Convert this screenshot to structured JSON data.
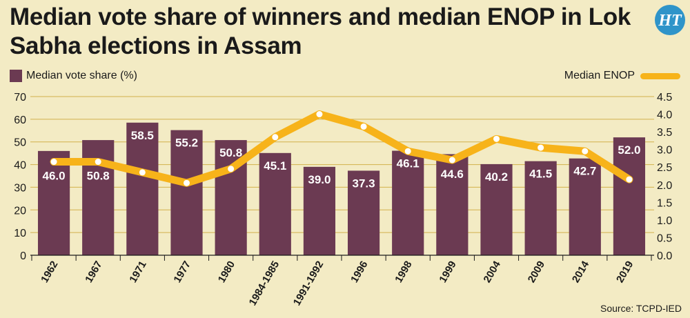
{
  "header": {
    "title": "Median vote share of winners and median ENOP in Lok Sabha elections in Assam",
    "logo_text": "HT"
  },
  "legend": {
    "left_label": "Median vote share (%)",
    "right_label": "Median ENOP"
  },
  "source": "Source: TCPD-IED",
  "colors": {
    "bar": "#6b3a52",
    "line": "#f7b31a",
    "marker": "#ffffff",
    "grid": "#d2b04a",
    "background": "#f3ebc4",
    "logo": "#2f94c9"
  },
  "chart_data": {
    "type": "bar",
    "categories": [
      "1962",
      "1967",
      "1971",
      "1977",
      "1980",
      "1984-1985",
      "1991-1992",
      "1996",
      "1998",
      "1999",
      "2004",
      "2009",
      "2014",
      "2019"
    ],
    "series": [
      {
        "name": "Median vote share (%)",
        "type": "bar",
        "axis": "left",
        "values": [
          46.0,
          50.8,
          58.5,
          55.2,
          50.8,
          45.1,
          39.0,
          37.3,
          46.1,
          44.6,
          40.2,
          41.5,
          42.7,
          52.0
        ],
        "labels": [
          "46.0",
          "50.8",
          "58.5",
          "55.2",
          "50.8",
          "45.1",
          "39.0",
          "37.3",
          "46.1",
          "44.6",
          "40.2",
          "41.5",
          "42.7",
          "52.0"
        ]
      },
      {
        "name": "Median ENOP",
        "type": "line",
        "axis": "right",
        "values": [
          2.65,
          2.65,
          2.35,
          2.05,
          2.45,
          3.35,
          4.0,
          3.65,
          2.95,
          2.7,
          3.3,
          3.05,
          2.95,
          2.15
        ]
      }
    ],
    "ylim_left": [
      0,
      70
    ],
    "ylim_right": [
      0,
      4.5
    ],
    "yticks_left": [
      "0",
      "10",
      "20",
      "30",
      "40",
      "50",
      "60",
      "70"
    ],
    "yticks_right": [
      "0.0",
      "0.5",
      "1.0",
      "1.5",
      "2.0",
      "2.5",
      "3.0",
      "3.5",
      "4.0",
      "4.5"
    ],
    "grid": true
  }
}
